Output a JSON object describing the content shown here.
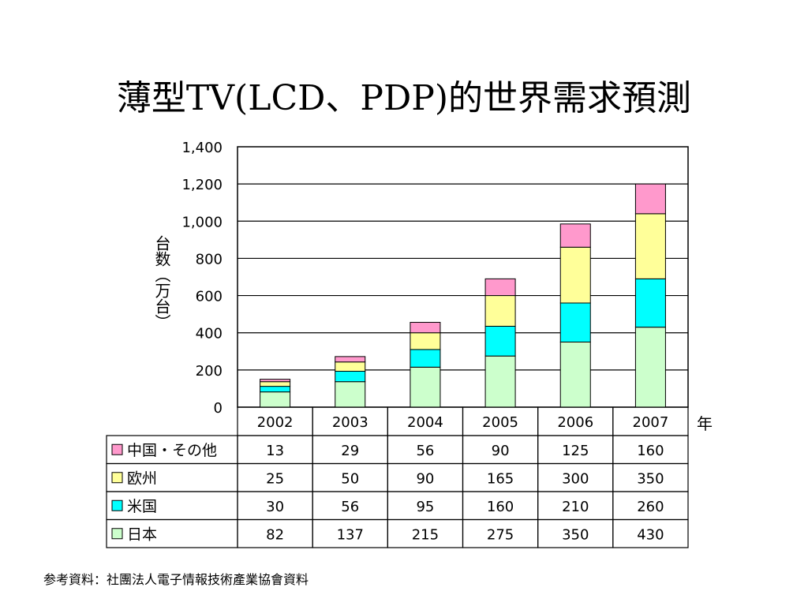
{
  "slide": {
    "title": "薄型TV(LCD、PDP)的世界需求預測",
    "source": "参考資料：社團法人電子情報技術產業協會資料"
  },
  "chart_data": {
    "type": "bar",
    "stacked": true,
    "title": "",
    "ylabel": "台数（万台）",
    "xlabel": "年",
    "ylim": [
      0,
      1400
    ],
    "yticks": [
      0,
      200,
      400,
      600,
      800,
      1000,
      1200,
      1400
    ],
    "ytick_labels": [
      "0",
      "200",
      "400",
      "600",
      "800",
      "1,000",
      "1,200",
      "1,400"
    ],
    "grid": true,
    "categories": [
      "2002",
      "2003",
      "2004",
      "2005",
      "2006",
      "2007"
    ],
    "series": [
      {
        "name": "日本",
        "color": "#ccffcc",
        "values": [
          82,
          137,
          215,
          275,
          350,
          430
        ]
      },
      {
        "name": "米国",
        "color": "#00ffff",
        "values": [
          30,
          56,
          95,
          160,
          210,
          260
        ]
      },
      {
        "name": "欧州",
        "color": "#ffff99",
        "values": [
          25,
          50,
          90,
          165,
          300,
          350
        ]
      },
      {
        "name": "中国・その他",
        "color": "#ff99cc",
        "values": [
          13,
          29,
          56,
          90,
          125,
          160
        ]
      }
    ],
    "table_row_order": [
      "中国・その他",
      "欧州",
      "米国",
      "日本"
    ],
    "legend": "data-table-left"
  }
}
